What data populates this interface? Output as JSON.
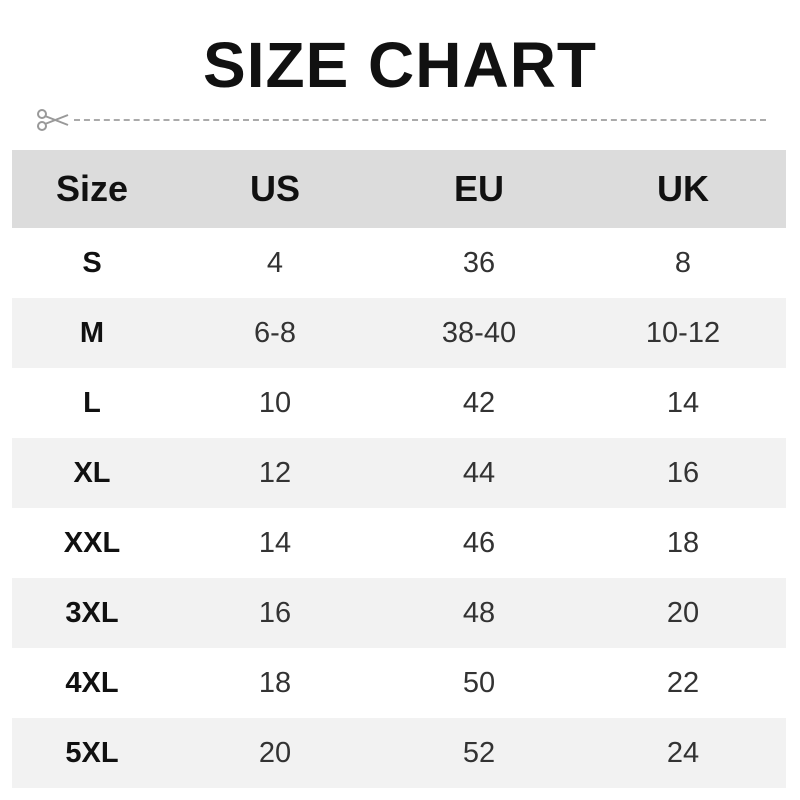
{
  "title": "SIZE CHART",
  "icons": {
    "cut_line": "scissors-icon"
  },
  "table": {
    "headers": [
      "Size",
      "US",
      "EU",
      "UK"
    ],
    "rows": [
      [
        "S",
        "4",
        "36",
        "8"
      ],
      [
        "M",
        "6-8",
        "38-40",
        "10-12"
      ],
      [
        "L",
        "10",
        "42",
        "14"
      ],
      [
        "XL",
        "12",
        "44",
        "16"
      ],
      [
        "XXL",
        "14",
        "46",
        "18"
      ],
      [
        "3XL",
        "16",
        "48",
        "20"
      ],
      [
        "4XL",
        "18",
        "50",
        "22"
      ],
      [
        "5XL",
        "20",
        "52",
        "24"
      ]
    ]
  }
}
